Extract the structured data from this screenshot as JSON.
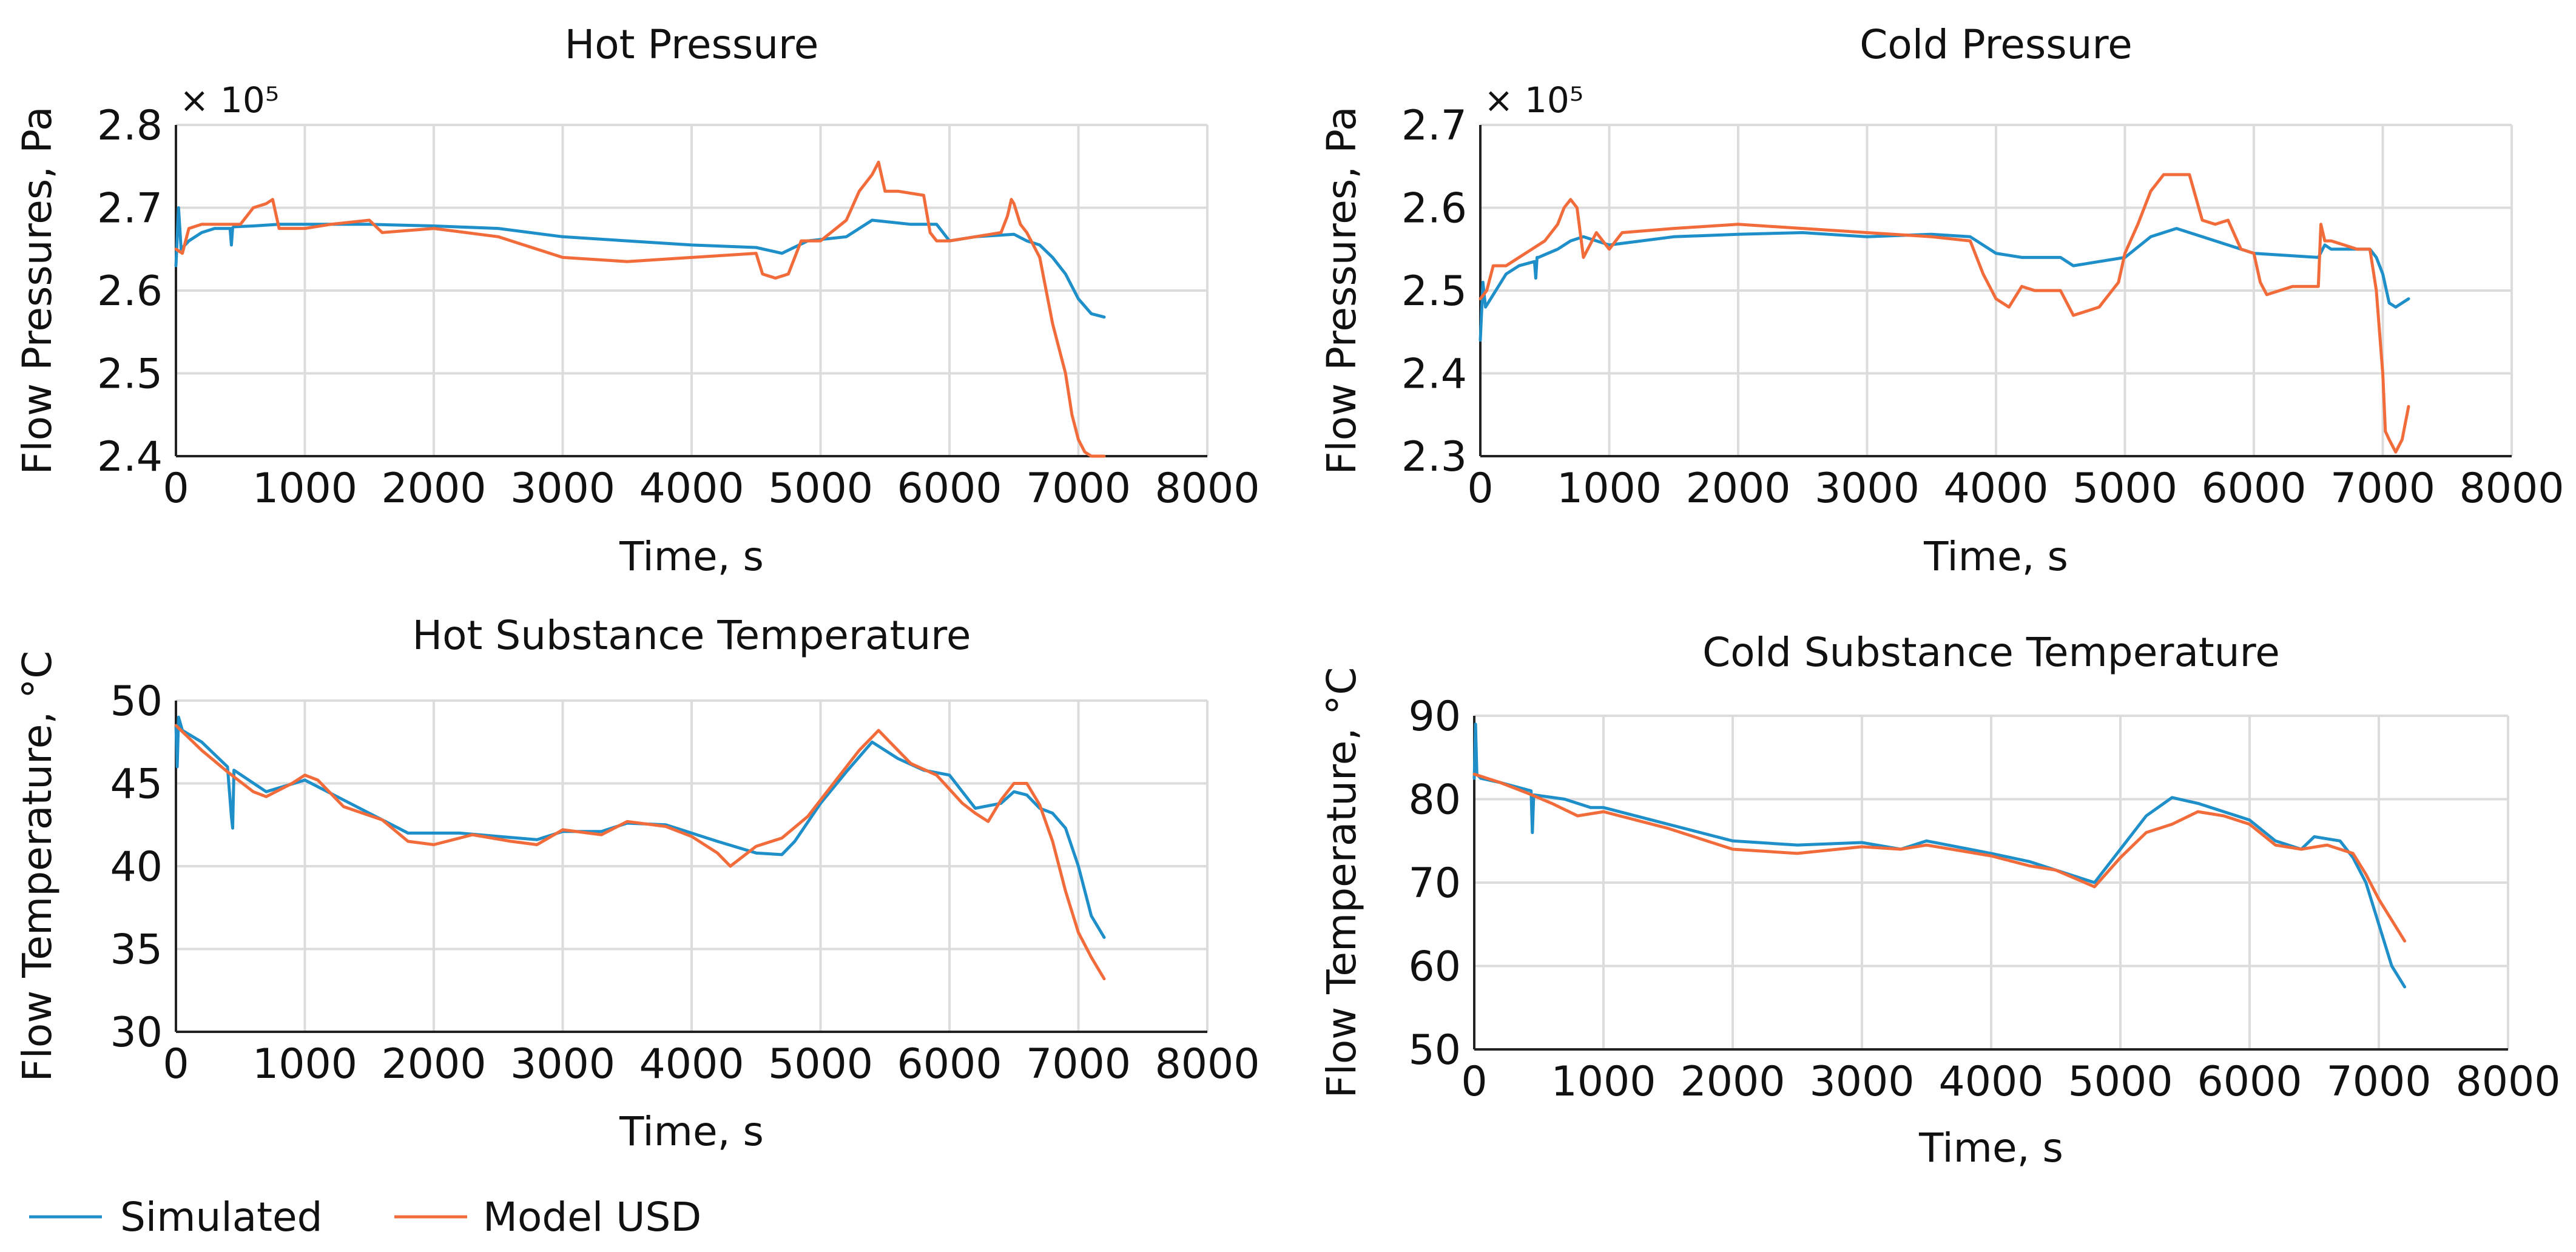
{
  "colors": {
    "simulated": "#1f8fc9",
    "model": "#f26b3a"
  },
  "legend": [
    {
      "name": "Simulated",
      "color": "#1f8fc9"
    },
    {
      "name": "Model USD",
      "color": "#f26b3a"
    }
  ],
  "chart_data": [
    {
      "type": "line",
      "title": "Hot Pressure",
      "xlabel": "Time, s",
      "ylabel": "Flow Pressures, Pa",
      "multiplier": "× 10⁵",
      "xlim": [
        0,
        8000
      ],
      "ylim": [
        2.4,
        2.8
      ],
      "xticks": [
        0,
        1000,
        2000,
        3000,
        4000,
        5000,
        6000,
        7000,
        8000
      ],
      "yticks": [
        2.4,
        2.5,
        2.6,
        2.7,
        2.8
      ],
      "ytick_labels": [
        "2.4",
        "2.5",
        "2.6",
        "2.7",
        "2.8"
      ],
      "grid": true,
      "series": [
        {
          "name": "Simulated",
          "x": [
            0,
            20,
            40,
            100,
            200,
            300,
            420,
            430,
            440,
            450,
            600,
            800,
            1000,
            1500,
            2000,
            2500,
            3000,
            3500,
            4000,
            4500,
            4700,
            4900,
            5200,
            5400,
            5700,
            5900,
            6000,
            6200,
            6500,
            6600,
            6700,
            6800,
            6900,
            7000,
            7100,
            7200
          ],
          "y": [
            2.63,
            2.7,
            2.65,
            2.66,
            2.67,
            2.675,
            2.675,
            2.655,
            2.676,
            2.677,
            2.678,
            2.68,
            2.68,
            2.68,
            2.678,
            2.675,
            2.665,
            2.66,
            2.655,
            2.652,
            2.645,
            2.66,
            2.665,
            2.685,
            2.68,
            2.68,
            2.66,
            2.665,
            2.668,
            2.66,
            2.655,
            2.64,
            2.62,
            2.59,
            2.572,
            2.568
          ]
        },
        {
          "name": "Model USD",
          "x": [
            0,
            50,
            100,
            200,
            300,
            400,
            500,
            600,
            700,
            750,
            800,
            1000,
            1200,
            1500,
            1600,
            2000,
            2500,
            3000,
            3500,
            4000,
            4500,
            4550,
            4650,
            4750,
            4800,
            4850,
            5000,
            5200,
            5300,
            5400,
            5450,
            5500,
            5600,
            5800,
            5850,
            5900,
            6000,
            6200,
            6400,
            6450,
            6480,
            6500,
            6550,
            6600,
            6700,
            6800,
            6900,
            6950,
            7000,
            7050,
            7100,
            7200
          ],
          "y": [
            2.65,
            2.645,
            2.675,
            2.68,
            2.68,
            2.68,
            2.68,
            2.7,
            2.705,
            2.71,
            2.675,
            2.675,
            2.68,
            2.685,
            2.67,
            2.675,
            2.665,
            2.64,
            2.635,
            2.64,
            2.645,
            2.62,
            2.615,
            2.62,
            2.64,
            2.66,
            2.66,
            2.685,
            2.72,
            2.74,
            2.755,
            2.72,
            2.72,
            2.715,
            2.67,
            2.66,
            2.66,
            2.665,
            2.67,
            2.69,
            2.71,
            2.705,
            2.68,
            2.67,
            2.64,
            2.56,
            2.5,
            2.45,
            2.42,
            2.405,
            2.4,
            2.4
          ]
        }
      ]
    },
    {
      "type": "line",
      "title": "Cold Pressure",
      "xlabel": "Time, s",
      "ylabel": "Flow Pressures, Pa",
      "multiplier": "× 10⁵",
      "xlim": [
        0,
        8000
      ],
      "ylim": [
        2.3,
        2.7
      ],
      "xticks": [
        0,
        1000,
        2000,
        3000,
        4000,
        5000,
        6000,
        7000,
        8000
      ],
      "yticks": [
        2.3,
        2.4,
        2.5,
        2.6,
        2.7
      ],
      "ytick_labels": [
        "2.3",
        "2.4",
        "2.5",
        "2.6",
        "2.7"
      ],
      "grid": true,
      "series": [
        {
          "name": "Simulated",
          "x": [
            0,
            20,
            40,
            100,
            200,
            300,
            420,
            430,
            440,
            450,
            600,
            700,
            800,
            1000,
            1500,
            2000,
            2500,
            3000,
            3500,
            3800,
            4000,
            4200,
            4500,
            4600,
            4800,
            5000,
            5200,
            5400,
            5600,
            5700,
            6000,
            6500,
            6550,
            6600,
            6800,
            6900,
            6950,
            7000,
            7050,
            7100,
            7200
          ],
          "y": [
            2.44,
            2.51,
            2.48,
            2.495,
            2.52,
            2.53,
            2.535,
            2.515,
            2.54,
            2.54,
            2.55,
            2.56,
            2.565,
            2.555,
            2.565,
            2.568,
            2.57,
            2.565,
            2.568,
            2.565,
            2.545,
            2.54,
            2.54,
            2.53,
            2.535,
            2.54,
            2.565,
            2.575,
            2.565,
            2.56,
            2.545,
            2.54,
            2.555,
            2.55,
            2.55,
            2.55,
            2.54,
            2.52,
            2.485,
            2.48,
            2.49
          ]
        },
        {
          "name": "Model USD",
          "x": [
            0,
            50,
            100,
            200,
            300,
            400,
            500,
            550,
            600,
            650,
            700,
            750,
            800,
            900,
            1000,
            1100,
            1500,
            2000,
            2500,
            3000,
            3500,
            3800,
            3900,
            4000,
            4100,
            4200,
            4300,
            4400,
            4500,
            4600,
            4700,
            4800,
            4850,
            4950,
            5000,
            5100,
            5200,
            5300,
            5400,
            5500,
            5600,
            5700,
            5800,
            5900,
            6000,
            6050,
            6100,
            6300,
            6500,
            6520,
            6550,
            6600,
            6700,
            6800,
            6900,
            6950,
            6970,
            7000,
            7020,
            7050,
            7100,
            7150,
            7200
          ],
          "y": [
            2.49,
            2.5,
            2.53,
            2.53,
            2.54,
            2.55,
            2.56,
            2.57,
            2.58,
            2.6,
            2.61,
            2.6,
            2.54,
            2.57,
            2.55,
            2.57,
            2.575,
            2.58,
            2.575,
            2.57,
            2.565,
            2.56,
            2.52,
            2.49,
            2.48,
            2.505,
            2.5,
            2.5,
            2.5,
            2.47,
            2.475,
            2.48,
            2.49,
            2.51,
            2.545,
            2.58,
            2.62,
            2.64,
            2.64,
            2.64,
            2.585,
            2.58,
            2.585,
            2.55,
            2.545,
            2.51,
            2.495,
            2.505,
            2.505,
            2.58,
            2.56,
            2.56,
            2.555,
            2.55,
            2.55,
            2.5,
            2.46,
            2.4,
            2.33,
            2.32,
            2.305,
            2.32,
            2.36
          ]
        }
      ]
    },
    {
      "type": "line",
      "title": "Hot Substance Temperature",
      "xlabel": "Time, s",
      "ylabel": "Flow Temperature, °C",
      "xlim": [
        0,
        8000
      ],
      "ylim": [
        30,
        50
      ],
      "xticks": [
        0,
        1000,
        2000,
        3000,
        4000,
        5000,
        6000,
        7000,
        8000
      ],
      "yticks": [
        30,
        35,
        40,
        45,
        50
      ],
      "ytick_labels": [
        "30",
        "35",
        "40",
        "45",
        "50"
      ],
      "grid": true,
      "series": [
        {
          "name": "Simulated",
          "x": [
            0,
            10,
            20,
            50,
            200,
            400,
            430,
            440,
            450,
            700,
            1000,
            1300,
            1800,
            2200,
            2500,
            2800,
            3000,
            3300,
            3500,
            3800,
            4200,
            4500,
            4700,
            4800,
            5000,
            5200,
            5400,
            5600,
            5800,
            6000,
            6200,
            6400,
            6500,
            6600,
            6700,
            6800,
            6900,
            7000,
            7100,
            7200
          ],
          "y": [
            48.5,
            46,
            49,
            48.2,
            47.5,
            46,
            43,
            42.3,
            45.8,
            44.5,
            45.2,
            44,
            42,
            42,
            41.8,
            41.6,
            42.1,
            42.1,
            42.6,
            42.5,
            41.5,
            40.8,
            40.7,
            41.5,
            43.8,
            45.7,
            47.5,
            46.5,
            45.8,
            45.5,
            43.5,
            43.8,
            44.5,
            44.3,
            43.5,
            43.2,
            42.3,
            40,
            37,
            35.7
          ]
        },
        {
          "name": "Model USD",
          "x": [
            0,
            200,
            400,
            600,
            700,
            900,
            1000,
            1100,
            1300,
            1600,
            1800,
            2000,
            2300,
            2600,
            2800,
            3000,
            3300,
            3500,
            3800,
            4000,
            4200,
            4300,
            4500,
            4700,
            4900,
            5100,
            5300,
            5400,
            5450,
            5500,
            5700,
            5900,
            6100,
            6200,
            6300,
            6400,
            6500,
            6600,
            6700,
            6800,
            6900,
            7000,
            7100,
            7200
          ],
          "y": [
            48.5,
            47,
            45.7,
            44.5,
            44.2,
            45,
            45.5,
            45.2,
            43.6,
            42.8,
            41.5,
            41.3,
            41.9,
            41.5,
            41.3,
            42.2,
            41.9,
            42.7,
            42.4,
            41.8,
            40.8,
            40,
            41.2,
            41.7,
            43,
            45,
            47,
            47.8,
            48.2,
            47.8,
            46.2,
            45.5,
            43.8,
            43.2,
            42.7,
            44,
            45,
            45,
            43.7,
            41.5,
            38.5,
            36,
            34.5,
            33.2
          ]
        }
      ]
    },
    {
      "type": "line",
      "title": "Cold Substance Temperature",
      "xlabel": "Time, s",
      "ylabel": "Flow Temperature, °C",
      "xlim": [
        0,
        8000
      ],
      "ylim": [
        50,
        90
      ],
      "xticks": [
        0,
        1000,
        2000,
        3000,
        4000,
        5000,
        6000,
        7000,
        8000
      ],
      "yticks": [
        50,
        60,
        70,
        80,
        90
      ],
      "ytick_labels": [
        "50",
        "60",
        "70",
        "80",
        "90"
      ],
      "grid": true,
      "series": [
        {
          "name": "Simulated",
          "x": [
            0,
            10,
            20,
            50,
            200,
            440,
            450,
            460,
            470,
            700,
            900,
            1000,
            1500,
            2000,
            2500,
            3000,
            3300,
            3500,
            4000,
            4300,
            4500,
            4800,
            5000,
            5200,
            5400,
            5600,
            5800,
            6000,
            6200,
            6400,
            6500,
            6700,
            6800,
            6900,
            7000,
            7100,
            7200
          ],
          "y": [
            82.5,
            89,
            83,
            82.5,
            82,
            81,
            76,
            80.5,
            80.5,
            80,
            79,
            79,
            77,
            75,
            74.5,
            74.8,
            74,
            75,
            73.5,
            72.5,
            71.5,
            70,
            74,
            78,
            80.2,
            79.5,
            78.5,
            77.5,
            75,
            74,
            75.5,
            75,
            73,
            70,
            65,
            60,
            57.5
          ]
        },
        {
          "name": "Model USD",
          "x": [
            0,
            200,
            400,
            600,
            800,
            1000,
            1500,
            2000,
            2500,
            3000,
            3300,
            3500,
            4000,
            4300,
            4500,
            4800,
            5000,
            5200,
            5400,
            5600,
            5800,
            6000,
            6200,
            6400,
            6600,
            6800,
            6900,
            7000,
            7100,
            7200
          ],
          "y": [
            83,
            82,
            80.8,
            79.5,
            78,
            78.5,
            76.5,
            74,
            73.5,
            74.3,
            74,
            74.5,
            73.2,
            72,
            71.5,
            69.5,
            73,
            76,
            77,
            78.5,
            78,
            77,
            74.5,
            74,
            74.5,
            73.5,
            71,
            68,
            65.5,
            63
          ]
        }
      ]
    }
  ]
}
